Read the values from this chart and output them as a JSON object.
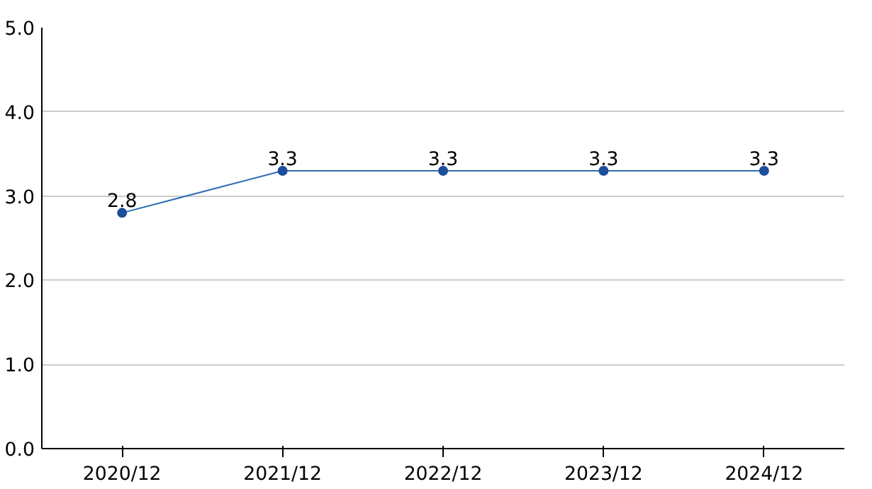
{
  "chart_data": {
    "type": "line",
    "categories": [
      "2020/12",
      "2021/12",
      "2022/12",
      "2023/12",
      "2024/12"
    ],
    "series": [
      {
        "color": "#2e6db4",
        "values": [
          2.8,
          3.3,
          3.3,
          3.3,
          3.3
        ]
      }
    ],
    "ylim": [
      0,
      5
    ],
    "yticks": [
      {
        "value": 0,
        "label": "0.0"
      },
      {
        "value": 1,
        "label": "1.0"
      },
      {
        "value": 2,
        "label": "2.0"
      },
      {
        "value": 3,
        "label": "3.0"
      },
      {
        "value": 4,
        "label": "4.0"
      },
      {
        "value": 5,
        "label": "5.0"
      }
    ],
    "grid": "y",
    "marker": "circle",
    "data_labels": true
  }
}
